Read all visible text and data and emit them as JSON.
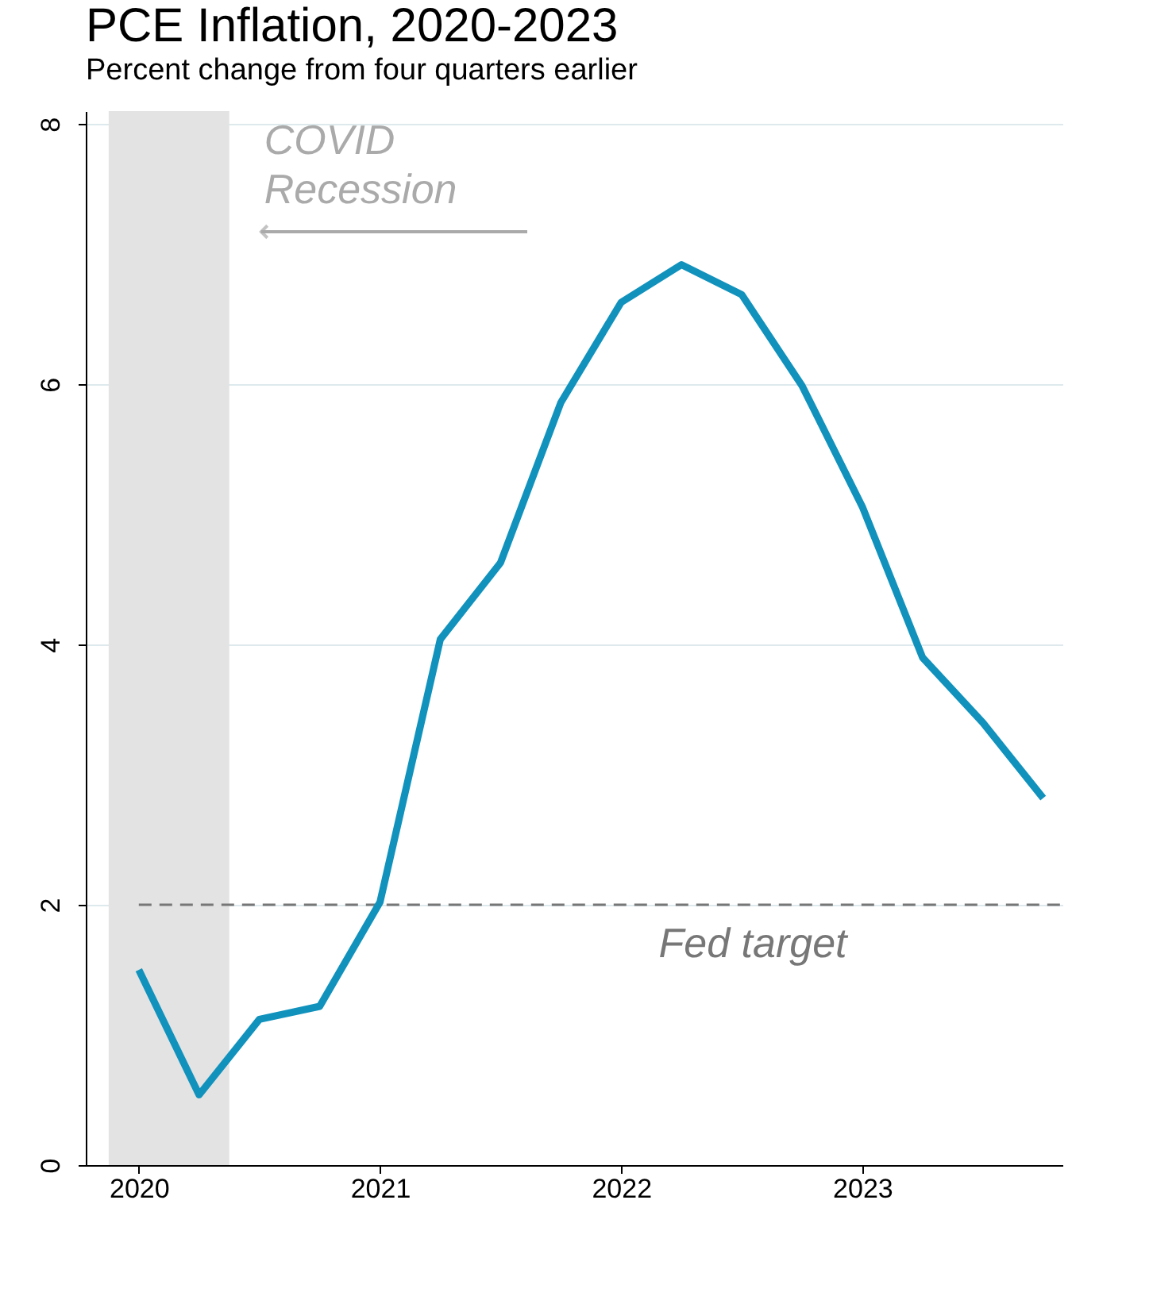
{
  "chart_data": {
    "type": "line",
    "title": "PCE Inflation, 2020-2023",
    "subtitle": "Percent change from four quarters earlier",
    "x": [
      2020,
      2020.25,
      2020.5,
      2020.75,
      2021,
      2021.25,
      2021.5,
      2021.75,
      2022,
      2022.25,
      2022.5,
      2022.75,
      2023,
      2023.25,
      2023.5,
      2023.75
    ],
    "series": [
      {
        "color": "#1192bd",
        "values": [
          1.5,
          0.54,
          1.12,
          1.22,
          2.02,
          4.04,
          4.63,
          5.86,
          6.63,
          6.92,
          6.69,
          5.99,
          5.06,
          3.9,
          3.4,
          2.82
        ]
      }
    ],
    "xlim": [
      2019.78,
      2023.83
    ],
    "xticks": [
      2020,
      2021,
      2022,
      2023
    ],
    "ylim": [
      0,
      8.1
    ],
    "yticks": [
      0,
      2,
      4,
      6,
      8
    ],
    "grid": "y",
    "marker": "none",
    "line_style": "solid",
    "ref_lines": [
      {
        "axis": "y",
        "value": 2,
        "label": "Fed target",
        "color": "#777777",
        "line_style": "dashed"
      }
    ],
    "bands": [
      {
        "axis": "x",
        "from": 2019.875,
        "to": 2020.375,
        "label": "COVID Recession",
        "color": "#e3e3e3"
      }
    ]
  }
}
